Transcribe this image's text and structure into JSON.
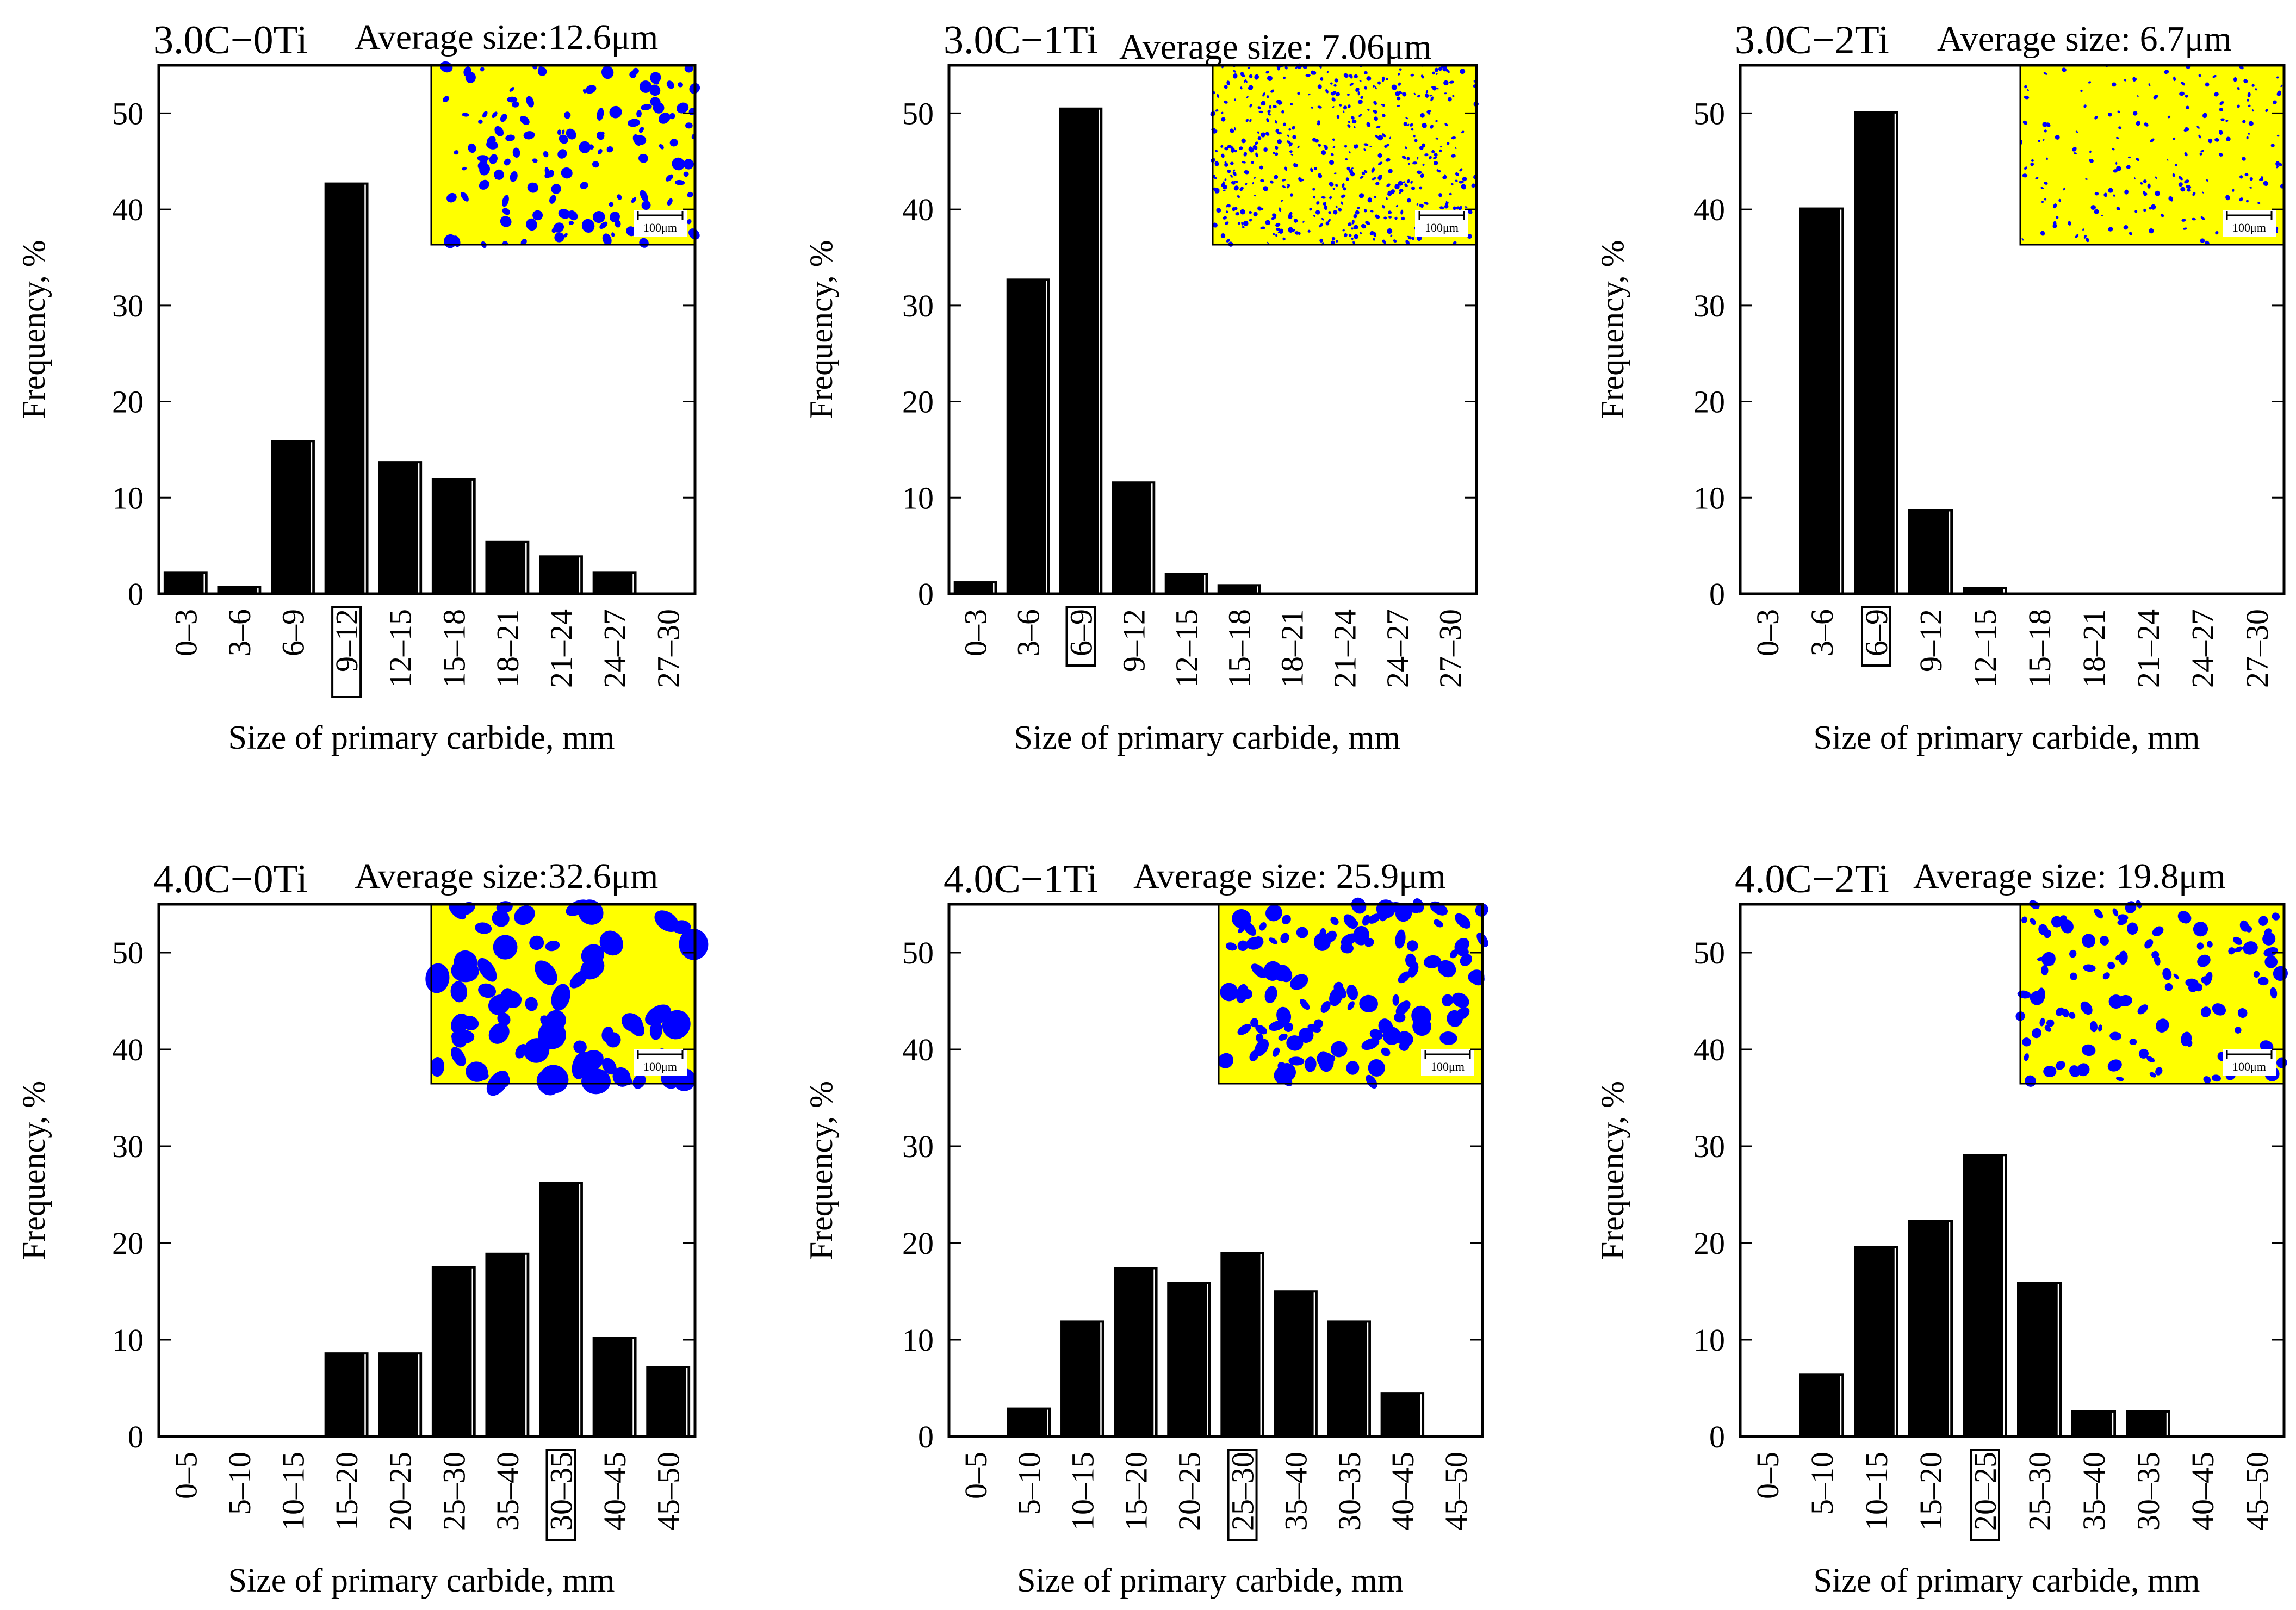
{
  "figure": {
    "micrograph_scale_label": "100μm",
    "inset_background_color": "#ffff00",
    "inset_particle_color": "#0000ff",
    "bar_color": "#000000"
  },
  "chart_data": [
    {
      "type": "bar",
      "title": "3.0C−0Ti",
      "average_label": "Average size:12.6μm",
      "xlabel": "Size of primary carbide, mm",
      "ylabel": "Frequency, %",
      "ylim": [
        0,
        55
      ],
      "yticks": [
        0,
        10,
        20,
        30,
        40,
        50
      ],
      "categories": [
        "0–3",
        "3–6",
        "6–9",
        "9–12",
        "12–15",
        "15–18",
        "18–21",
        "21–24",
        "24–27",
        "27–30"
      ],
      "values": [
        2.3,
        0.8,
        16.0,
        42.8,
        13.8,
        12.0,
        5.5,
        4.0,
        2.3,
        0
      ],
      "highlighted_category": "9–12",
      "micrograph": "fine"
    },
    {
      "type": "bar",
      "title": "3.0C−1Ti",
      "average_label": "Average size: 7.06μm",
      "xlabel": "Size of primary carbide, mm",
      "ylabel": "Frequency, %",
      "ylim": [
        0,
        55
      ],
      "yticks": [
        0,
        10,
        20,
        30,
        40,
        50
      ],
      "categories": [
        "0–3",
        "3–6",
        "6–9",
        "9–12",
        "12–15",
        "15–18",
        "18–21",
        "21–24",
        "24–27",
        "27–30"
      ],
      "values": [
        1.3,
        32.8,
        50.6,
        11.7,
        2.2,
        1.0,
        0,
        0,
        0,
        0
      ],
      "highlighted_category": "6–9",
      "micrograph": "veryfine"
    },
    {
      "type": "bar",
      "title": "3.0C−2Ti",
      "average_label": "Average size: 6.7μm",
      "xlabel": "Size of primary carbide, mm",
      "ylabel": "Frequency, %",
      "ylim": [
        0,
        55
      ],
      "yticks": [
        0,
        10,
        20,
        30,
        40,
        50
      ],
      "categories": [
        "0–3",
        "3–6",
        "6–9",
        "9–12",
        "12–15",
        "15–18",
        "18–21",
        "21–24",
        "24–27",
        "27–30"
      ],
      "values": [
        0,
        40.2,
        50.2,
        8.8,
        0.7,
        0,
        0,
        0,
        0,
        0
      ],
      "highlighted_category": "6–9",
      "micrograph": "sparse"
    },
    {
      "type": "bar",
      "title": "4.0C−0Ti",
      "average_label": "Average size:32.6μm",
      "xlabel": "Size of primary carbide, mm",
      "ylabel": "Frequency, %",
      "ylim": [
        0,
        55
      ],
      "yticks": [
        0,
        10,
        20,
        30,
        40,
        50
      ],
      "categories": [
        "0–5",
        "5–10",
        "10–15",
        "15–20",
        "20–25",
        "25–30",
        "35–40",
        "30–35",
        "40–45",
        "45–50"
      ],
      "values": [
        0,
        0,
        0,
        8.7,
        8.7,
        17.6,
        19.0,
        26.3,
        10.3,
        7.3
      ],
      "highlighted_category": "30–35",
      "micrograph": "coarse"
    },
    {
      "type": "bar",
      "title": "4.0C−1Ti",
      "average_label": "Average size: 25.9μm",
      "xlabel": "Size of primary carbide, mm",
      "ylabel": "Frequency, %",
      "ylim": [
        0,
        55
      ],
      "yticks": [
        0,
        10,
        20,
        30,
        40,
        50
      ],
      "categories": [
        "0–5",
        "5–10",
        "10–15",
        "15–20",
        "20–25",
        "25–30",
        "35–40",
        "30–35",
        "40–45",
        "45–50"
      ],
      "values": [
        0,
        3.0,
        12.0,
        17.5,
        16.0,
        19.1,
        15.1,
        12.0,
        4.6,
        0
      ],
      "highlighted_category": "25–30",
      "micrograph": "medium"
    },
    {
      "type": "bar",
      "title": "4.0C−2Ti",
      "average_label": "Average size: 19.8μm",
      "xlabel": "Size of primary carbide, mm",
      "ylabel": "Frequency, %",
      "ylim": [
        0,
        55
      ],
      "yticks": [
        0,
        10,
        20,
        30,
        40,
        50
      ],
      "categories": [
        "0–5",
        "5–10",
        "10–15",
        "15–20",
        "20–25",
        "25–30",
        "35–40",
        "30–35",
        "40–45",
        "45–50"
      ],
      "values": [
        0,
        6.5,
        19.7,
        22.4,
        29.2,
        16.0,
        2.7,
        2.7,
        0,
        0
      ],
      "highlighted_category": "20–25",
      "micrograph": "mediumsmall"
    }
  ]
}
